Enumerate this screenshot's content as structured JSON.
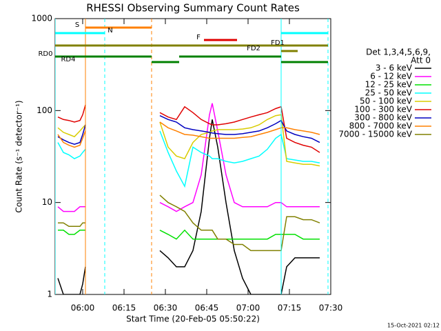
{
  "chart_data": {
    "type": "line",
    "title": "RHESSI Observing Summary Count Rates",
    "xlabel": "Start Time (20-Feb-05 05:50:22)",
    "ylabel": "Count Rate (s⁻¹ detector⁻¹)",
    "legend_title": [
      "Det 1,3,4,5,6,9,",
      "Att 0"
    ],
    "footer": "15-Oct-2021 02:12",
    "log_y": true,
    "xlim": [
      "05:50",
      "07:30"
    ],
    "xticks": [
      "06:00",
      "06:15",
      "06:30",
      "06:45",
      "07:00",
      "07:15",
      "07:30"
    ],
    "ylim": [
      1,
      1000
    ],
    "yticks": [
      1,
      10,
      100,
      1000
    ],
    "x": [
      "05:51",
      "05:53",
      "05:55",
      "05:57",
      "05:59",
      "06:00",
      "06:01",
      "06:15",
      "06:28",
      "06:31",
      "06:34",
      "06:37",
      "06:40",
      "06:43",
      "06:46",
      "06:47",
      "06:49",
      "06:52",
      "06:55",
      "06:58",
      "07:01",
      "07:04",
      "07:07",
      "07:10",
      "07:12",
      "07:14",
      "07:17",
      "07:20",
      "07:23",
      "07:26"
    ],
    "series": [
      {
        "name": "3 - 6 keV",
        "color": "#000000",
        "values": [
          1.5,
          1,
          1,
          1,
          1,
          1.3,
          2,
          null,
          3,
          2.5,
          2,
          2,
          3,
          8,
          50,
          80,
          40,
          10,
          3,
          1.5,
          1,
          1,
          1,
          1,
          1,
          2,
          2.5,
          2.5,
          2.5,
          2.5
        ]
      },
      {
        "name": "6 - 12 keV",
        "color": "#ff00ff",
        "values": [
          9,
          8,
          8,
          8,
          9,
          9,
          9,
          null,
          10,
          9,
          8,
          9,
          10,
          20,
          90,
          120,
          60,
          20,
          10,
          9,
          9,
          9,
          9,
          10,
          10,
          9,
          9,
          9,
          9,
          9
        ]
      },
      {
        "name": "12 - 25 keV",
        "color": "#00e000",
        "values": [
          5,
          5,
          4.5,
          4.5,
          5,
          5,
          5,
          null,
          5,
          4.5,
          4,
          5,
          4,
          4,
          4,
          4,
          4,
          4,
          4,
          4,
          4,
          4,
          4,
          4.5,
          4.5,
          4.5,
          4.5,
          4,
          4,
          4
        ]
      },
      {
        "name": "25 - 50 keV",
        "color": "#00ffff",
        "values": [
          45,
          35,
          33,
          30,
          32,
          35,
          38,
          null,
          60,
          35,
          22,
          15,
          40,
          35,
          32,
          30,
          30,
          28,
          27,
          28,
          30,
          32,
          38,
          50,
          55,
          30,
          29,
          28,
          28,
          27
        ]
      },
      {
        "name": "50 - 100 keV",
        "color": "#d8cc00",
        "values": [
          65,
          58,
          55,
          52,
          60,
          65,
          70,
          null,
          75,
          40,
          32,
          30,
          45,
          55,
          58,
          60,
          62,
          62,
          62,
          63,
          65,
          70,
          80,
          88,
          90,
          28,
          27,
          26,
          26,
          25
        ]
      },
      {
        "name": "100 - 300 keV",
        "color": "#e00000",
        "values": [
          85,
          80,
          78,
          75,
          78,
          90,
          115,
          null,
          95,
          85,
          80,
          110,
          95,
          80,
          72,
          70,
          70,
          72,
          75,
          80,
          85,
          90,
          95,
          105,
          110,
          50,
          45,
          42,
          40,
          35
        ]
      },
      {
        "name": "300 - 800 keV",
        "color": "#0000c0",
        "values": [
          52,
          48,
          45,
          43,
          45,
          55,
          70,
          null,
          88,
          80,
          75,
          65,
          62,
          60,
          58,
          57,
          56,
          55,
          55,
          56,
          58,
          60,
          65,
          72,
          78,
          60,
          55,
          52,
          50,
          45
        ]
      },
      {
        "name": "800 - 7000 keV",
        "color": "#ff8000",
        "values": [
          55,
          45,
          42,
          40,
          42,
          50,
          60,
          null,
          75,
          65,
          60,
          55,
          54,
          52,
          50,
          50,
          50,
          50,
          50,
          51,
          52,
          55,
          58,
          62,
          65,
          65,
          62,
          60,
          58,
          55
        ]
      },
      {
        "name": "7000 - 15000 keV",
        "color": "#808000",
        "values": [
          6,
          6,
          5.5,
          5.5,
          5.5,
          6,
          6,
          null,
          12,
          10,
          9,
          8,
          6,
          5,
          5,
          5,
          4,
          4,
          3.5,
          3.5,
          3,
          3,
          3,
          3,
          3,
          7,
          7,
          6.5,
          6.5,
          6
        ]
      }
    ],
    "flags": [
      {
        "label": "S",
        "color": "#ff8000",
        "segments": [
          [
            "06:01",
            "06:25"
          ]
        ]
      },
      {
        "label": "N",
        "color": "#00ffff",
        "segments": [
          [
            "05:50",
            "06:08"
          ],
          [
            "07:12",
            "07:29"
          ]
        ]
      },
      {
        "label": "F",
        "color": "#e00000",
        "segments": [
          [
            "06:44",
            "06:56"
          ]
        ]
      },
      {
        "label": "FD1",
        "color": "#808000",
        "segments": [
          [
            "05:50",
            "07:29"
          ]
        ]
      },
      {
        "label": "FD2",
        "color": "#808000",
        "segments": [
          [
            "07:12",
            "07:18"
          ]
        ]
      },
      {
        "label": "RD0",
        "color": "#008000",
        "segments": [
          [
            "05:50",
            "06:25"
          ],
          [
            "06:35",
            "07:12"
          ]
        ]
      },
      {
        "label": "RD4",
        "color": "#008000",
        "segments": [
          [
            "06:25",
            "06:35"
          ],
          [
            "07:12",
            "07:29"
          ]
        ]
      }
    ],
    "vlines": [
      {
        "time": "05:50",
        "color": "#00ffff",
        "dashed": false
      },
      {
        "time": "06:01",
        "color": "#ff8000",
        "dashed": false
      },
      {
        "time": "06:08",
        "color": "#00ffff",
        "dashed": true
      },
      {
        "time": "06:25",
        "color": "#ff8000",
        "dashed": true
      },
      {
        "time": "07:12",
        "color": "#00ffff",
        "dashed": false
      },
      {
        "time": "07:29",
        "color": "#00ffff",
        "dashed": true
      }
    ]
  }
}
